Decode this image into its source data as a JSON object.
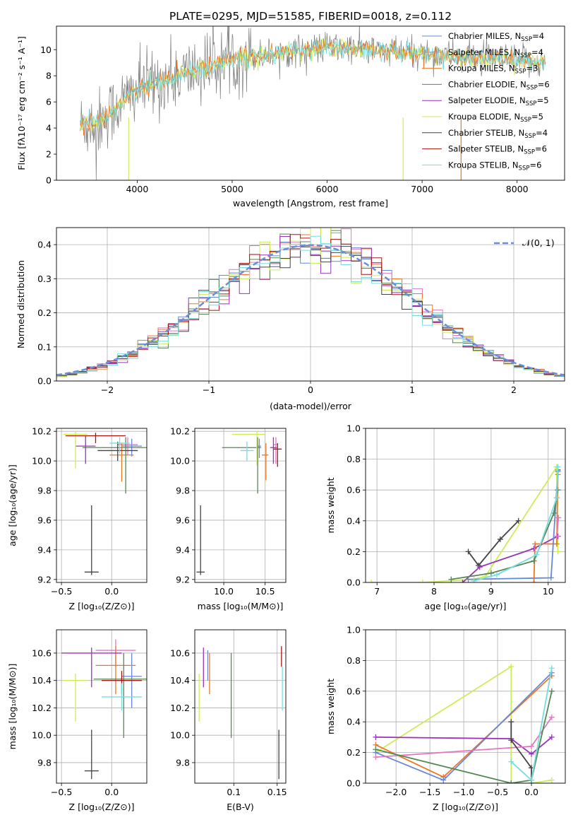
{
  "figure_title": "PLATE=0295, MJD=51585, FIBERID=0018, z=0.112",
  "colors": {
    "chabrier_miles": "#6688dd",
    "salpeter_miles": "#e377c2",
    "kroupa_miles": "#ee7722",
    "chabrier_elodie": "#558855",
    "salpeter_elodie": "#9933bb",
    "kroupa_elodie": "#ccee55",
    "chabrier_stelib": "#444444",
    "salpeter_stelib": "#aa1111",
    "kroupa_stelib": "#77dddd",
    "gaussian": "#6a8fd8"
  },
  "chart_data": [
    {
      "id": "spectrum",
      "type": "line",
      "xlabel": "wavelength [Angstrom, rest frame]",
      "ylabel": "Flux [fλ10⁻¹⁷ erg cm⁻² s⁻¹ A⁻¹]",
      "xlim": [
        3150,
        8500
      ],
      "ylim": [
        0,
        11.8
      ],
      "xticks": [
        4000,
        5000,
        6000,
        7000,
        8000
      ],
      "yticks": [
        0,
        2,
        4,
        6,
        8,
        10
      ],
      "legend_position": "top-right",
      "wave_range": [
        3400,
        8300
      ],
      "series_model": "approximate: rises from ~4.2 at 3400 to ~10.3 near 6000, noisy spikes; gray data spikes between 3500 and 5200",
      "legend": [
        {
          "name": "Chabrier MILES, N",
          "sub": "SSP",
          "suffix": "=4",
          "color": "chabrier_miles"
        },
        {
          "name": "Salpeter MILES, N",
          "sub": "SSP",
          "suffix": "=4",
          "color": "salpeter_miles"
        },
        {
          "name": "Kroupa MILES, N",
          "sub": "SSP",
          "suffix": "=3",
          "color": "kroupa_miles"
        },
        {
          "name": "Chabrier ELODIE, N",
          "sub": "SSP",
          "suffix": "=6",
          "color": "chabrier_elodie"
        },
        {
          "name": "Salpeter ELODIE, N",
          "sub": "SSP",
          "suffix": "=5",
          "color": "salpeter_elodie"
        },
        {
          "name": "Kroupa ELODIE, N",
          "sub": "SSP",
          "suffix": "=5",
          "color": "kroupa_elodie"
        },
        {
          "name": "Chabrier STELIB, N",
          "sub": "SSP",
          "suffix": "=4",
          "color": "chabrier_stelib"
        },
        {
          "name": "Salpeter STELIB, N",
          "sub": "SSP",
          "suffix": "=6",
          "color": "salpeter_stelib"
        },
        {
          "name": "Kroupa STELIB, N",
          "sub": "SSP",
          "suffix": "=6",
          "color": "kroupa_stelib"
        }
      ],
      "spike_lines": [
        {
          "x": 3910,
          "color": "kroupa_elodie"
        },
        {
          "x": 6800,
          "color": "kroupa_elodie"
        },
        {
          "x": 7410,
          "color": "kroupa_miles"
        }
      ]
    },
    {
      "id": "residuals",
      "type": "histogram",
      "xlabel": "(data-model)/error",
      "ylabel": "Normed distribution",
      "xlim": [
        -2.5,
        2.5
      ],
      "ylim": [
        0,
        0.45
      ],
      "xticks": [
        -2,
        -1,
        0,
        1,
        2
      ],
      "yticks": [
        0.0,
        0.1,
        0.2,
        0.3,
        0.4
      ],
      "grid": true,
      "legend": [
        {
          "name": "𝒩(0, 1)",
          "color": "gaussian",
          "style": "dashed"
        }
      ],
      "legend_position": "top-right",
      "bin_width": 0.1,
      "curve": "normal pdf mean 0 sigma 1"
    },
    {
      "id": "age_vs_Z",
      "type": "errorbar",
      "xlabel": "Z [log₁₀(Z/Z⊙)]",
      "ylabel": "age  [log₁₀(age/yr)]",
      "xlim": [
        -0.55,
        0.35
      ],
      "ylim": [
        9.18,
        10.22
      ],
      "xticks": [
        -0.5,
        0.0
      ],
      "yticks": [
        9.2,
        9.4,
        9.6,
        9.8,
        10.0,
        10.2
      ],
      "grid": true,
      "points": [
        {
          "color": "chabrier_stelib",
          "x": -0.2,
          "y": 9.25,
          "xerr": 0.07,
          "ylo": 9.23,
          "yhi": 9.7
        },
        {
          "color": "chabrier_miles",
          "x": 0.2,
          "y": 10.1,
          "xerr": 0.1,
          "ylo": 10.03,
          "yhi": 10.15
        },
        {
          "color": "salpeter_miles",
          "x": 0.16,
          "y": 10.11,
          "xerr": 0.1,
          "ylo": 10.04,
          "yhi": 10.16
        },
        {
          "color": "kroupa_miles",
          "x": 0.1,
          "y": 10.04,
          "xerr": 0.12,
          "ylo": 9.86,
          "yhi": 10.12
        },
        {
          "color": "chabrier_elodie",
          "x": 0.14,
          "y": 10.09,
          "xerr": 0.43,
          "ylo": 9.78,
          "yhi": 10.16
        },
        {
          "color": "salpeter_elodie",
          "x": -0.26,
          "y": 10.1,
          "xerr": 0.1,
          "ylo": 9.98,
          "yhi": 10.17
        },
        {
          "color": "kroupa_elodie",
          "x": -0.36,
          "y": 10.18,
          "xerr": 0.12,
          "ylo": 9.95,
          "yhi": 10.2
        },
        {
          "color": "chabrier_stelib",
          "x": 0.06,
          "y": 10.07,
          "xerr": 0.2,
          "ylo": 10.0,
          "yhi": 10.13
        },
        {
          "color": "salpeter_stelib",
          "x": -0.16,
          "y": 10.17,
          "xerr": 0.3,
          "ylo": 10.12,
          "yhi": 10.19
        },
        {
          "color": "kroupa_stelib",
          "x": 0.08,
          "y": 10.12,
          "xerr": 0.1,
          "ylo": 10.05,
          "yhi": 10.16
        }
      ]
    },
    {
      "id": "age_vs_mass",
      "type": "errorbar",
      "xlabel": "mass [log₁₀(M/M⊙)]",
      "ylabel": "",
      "xlim": [
        9.65,
        10.75
      ],
      "ylim": [
        9.18,
        10.22
      ],
      "xticks": [
        10.0,
        10.5
      ],
      "yticks": [
        9.2,
        9.4,
        9.6,
        9.8,
        10.0,
        10.2
      ],
      "grid": true,
      "points": [
        {
          "color": "chabrier_stelib",
          "x": 9.72,
          "y": 9.25,
          "xerr": 0.05,
          "ylo": 9.23,
          "yhi": 9.7
        },
        {
          "color": "chabrier_miles",
          "x": 10.43,
          "y": 10.1,
          "xlo": 10.41,
          "xhi": 10.45,
          "ylo": 10.02,
          "yhi": 10.15
        },
        {
          "color": "salpeter_miles",
          "x": 10.63,
          "y": 10.11,
          "xlo": 10.6,
          "xhi": 10.65,
          "ylo": 9.98,
          "yhi": 10.16
        },
        {
          "color": "kroupa_miles",
          "x": 10.51,
          "y": 10.04,
          "xlo": 10.46,
          "xhi": 10.54,
          "ylo": 9.87,
          "yhi": 10.12
        },
        {
          "color": "chabrier_elodie",
          "x": 10.41,
          "y": 10.09,
          "xlo": 9.98,
          "xhi": 10.45,
          "ylo": 9.78,
          "yhi": 10.16
        },
        {
          "color": "salpeter_elodie",
          "x": 10.6,
          "y": 10.09,
          "xlo": 10.56,
          "xhi": 10.64,
          "ylo": 9.98,
          "yhi": 10.16
        },
        {
          "color": "kroupa_elodie",
          "x": 10.4,
          "y": 10.18,
          "xlo": 10.1,
          "xhi": 10.5,
          "ylo": 9.97,
          "yhi": 10.2
        },
        {
          "color": "salpeter_stelib",
          "x": 10.65,
          "y": 10.08,
          "xlo": 10.6,
          "xhi": 10.7,
          "ylo": 9.96,
          "yhi": 10.12
        },
        {
          "color": "kroupa_stelib",
          "x": 10.28,
          "y": 10.07,
          "xlo": 10.2,
          "xhi": 10.36,
          "ylo": 10.0,
          "yhi": 10.13
        }
      ]
    },
    {
      "id": "weight_vs_age",
      "type": "line",
      "xlabel": "age  [log₁₀(age/yr)]",
      "ylabel": "mass weight",
      "xlim": [
        6.8,
        10.3
      ],
      "ylim": [
        0,
        1.0
      ],
      "xticks": [
        7,
        8,
        9,
        10
      ],
      "yticks": [
        0.0,
        0.2,
        0.4,
        0.6,
        0.8,
        1.0
      ],
      "grid": true,
      "series": [
        {
          "color": "chabrier_stelib",
          "x": [
            8.6,
            8.78,
            9.16,
            9.48
          ],
          "y": [
            0.2,
            0.11,
            0.28,
            0.4
          ]
        },
        {
          "color": "chabrier_stelib",
          "x": [
            10.15,
            10.17
          ],
          "y": [
            0.55,
            0.73
          ]
        },
        {
          "color": "kroupa_elodie",
          "x": [
            6.9,
            7.8,
            8.7,
            8.9,
            10.15,
            10.17
          ],
          "y": [
            0.0,
            0.0,
            0.02,
            0.04,
            0.75,
            0.2
          ]
        },
        {
          "color": "salpeter_elodie",
          "x": [
            8.5,
            8.8,
            9.75,
            10.17
          ],
          "y": [
            0.0,
            0.1,
            0.22,
            0.3
          ]
        },
        {
          "color": "kroupa_miles",
          "x": [
            9.75,
            9.77,
            10.15,
            10.17
          ],
          "y": [
            0.0,
            0.25,
            0.25,
            0.7
          ]
        },
        {
          "color": "chabrier_miles",
          "x": [
            8.6,
            10.05,
            10.17
          ],
          "y": [
            0.02,
            0.03,
            0.72
          ]
        },
        {
          "color": "chabrier_elodie",
          "x": [
            8.3,
            9.0,
            9.75,
            10.1,
            10.17
          ],
          "y": [
            0.02,
            0.06,
            0.14,
            0.45,
            0.6
          ]
        },
        {
          "color": "kroupa_stelib",
          "x": [
            8.7,
            9.1,
            9.8,
            10.15,
            10.17
          ],
          "y": [
            0.01,
            0.05,
            0.18,
            0.55,
            0.75
          ]
        },
        {
          "color": "salpeter_miles",
          "x": [
            10.15,
            10.18
          ],
          "y": [
            0.3,
            0.42
          ]
        }
      ]
    },
    {
      "id": "mass_vs_Z",
      "type": "errorbar",
      "xlabel": "Z [log₁₀(Z/Z⊙)]",
      "ylabel": "mass [log₁₀(M/M⊙)]",
      "xlim": [
        -0.55,
        0.35
      ],
      "ylim": [
        9.65,
        10.77
      ],
      "xticks": [
        -0.5,
        0.0
      ],
      "yticks": [
        9.8,
        10.0,
        10.2,
        10.4,
        10.6
      ],
      "grid": true,
      "points": [
        {
          "color": "chabrier_stelib",
          "x": -0.2,
          "y": 9.74,
          "xerr": 0.07,
          "ylo": 9.68,
          "yhi": 10.04
        },
        {
          "color": "chabrier_miles",
          "x": 0.2,
          "y": 10.43,
          "xerr": 0.1,
          "ylo": 10.2,
          "yhi": 10.6
        },
        {
          "color": "salpeter_miles",
          "x": 0.04,
          "y": 10.62,
          "xerr": 0.2,
          "ylo": 10.5,
          "yhi": 10.7
        },
        {
          "color": "kroupa_miles",
          "x": 0.04,
          "y": 10.51,
          "xerr": 0.2,
          "ylo": 10.3,
          "yhi": 10.65
        },
        {
          "color": "chabrier_elodie",
          "x": 0.12,
          "y": 10.41,
          "xerr": 0.3,
          "ylo": 9.98,
          "yhi": 10.6
        },
        {
          "color": "salpeter_elodie",
          "x": -0.2,
          "y": 10.6,
          "xerr": 0.3,
          "ylo": 10.35,
          "yhi": 10.64
        },
        {
          "color": "kroupa_elodie",
          "x": -0.36,
          "y": 10.4,
          "xerr": 0.12,
          "ylo": 10.1,
          "yhi": 10.45
        },
        {
          "color": "salpeter_stelib",
          "x": 0.1,
          "y": 10.4,
          "xerr": 0.2,
          "ylo": 10.3,
          "yhi": 10.47
        },
        {
          "color": "kroupa_stelib",
          "x": 0.1,
          "y": 10.28,
          "xerr": 0.2,
          "ylo": 10.18,
          "yhi": 10.38
        }
      ]
    },
    {
      "id": "mass_vs_ebv",
      "type": "errorbar",
      "xlabel": "E(B-V)",
      "ylabel": "",
      "xlim": [
        0.055,
        0.16
      ],
      "ylim": [
        9.65,
        10.77
      ],
      "xticks": [
        0.1,
        0.15
      ],
      "yticks": [
        9.8,
        10.0,
        10.2,
        10.4,
        10.6
      ],
      "grid": true,
      "points": [
        {
          "color": "chabrier_stelib",
          "x": 0.152,
          "ylo": 9.68,
          "yhi": 10.04
        },
        {
          "color": "kroupa_elodie",
          "x": 0.06,
          "ylo": 10.1,
          "yhi": 10.45
        },
        {
          "color": "salpeter_elodie",
          "x": 0.065,
          "ylo": 10.35,
          "yhi": 10.64
        },
        {
          "color": "kroupa_miles",
          "x": 0.072,
          "ylo": 10.3,
          "yhi": 10.6
        },
        {
          "color": "chabrier_miles",
          "x": 0.07,
          "ylo": 10.4,
          "yhi": 10.62
        },
        {
          "color": "chabrier_elodie",
          "x": 0.097,
          "ylo": 9.98,
          "yhi": 10.6
        },
        {
          "color": "salpeter_stelib",
          "x": 0.155,
          "ylo": 10.5,
          "yhi": 10.65
        },
        {
          "color": "kroupa_stelib",
          "x": 0.156,
          "ylo": 10.18,
          "yhi": 10.5
        }
      ]
    },
    {
      "id": "weight_vs_Z",
      "type": "line",
      "xlabel": "Z [log₁₀(Z/Z⊙)]",
      "ylabel": "mass weight",
      "xlim": [
        -2.45,
        0.5
      ],
      "ylim": [
        0,
        1.0
      ],
      "xticks": [
        -2.0,
        -1.5,
        -1.0,
        -0.5,
        0.0
      ],
      "yticks": [
        0.0,
        0.2,
        0.4,
        0.6,
        0.8,
        1.0
      ],
      "grid": true,
      "series": [
        {
          "color": "kroupa_elodie",
          "x": [
            -2.3,
            -0.3,
            -0.3,
            0.0,
            0.3
          ],
          "y": [
            0.2,
            0.76,
            0.0,
            0.0,
            0.02
          ]
        },
        {
          "color": "kroupa_miles",
          "x": [
            -2.3,
            -1.3,
            0.3
          ],
          "y": [
            0.25,
            0.04,
            0.7
          ]
        },
        {
          "color": "chabrier_miles",
          "x": [
            -2.3,
            -1.3,
            0.3
          ],
          "y": [
            0.2,
            0.02,
            0.72
          ]
        },
        {
          "color": "salpeter_elodie",
          "x": [
            -2.3,
            -0.3,
            0.0,
            0.3
          ],
          "y": [
            0.3,
            0.29,
            0.19,
            0.3
          ]
        },
        {
          "color": "salpeter_miles",
          "x": [
            -2.3,
            0.0,
            0.3
          ],
          "y": [
            0.17,
            0.24,
            0.43
          ]
        },
        {
          "color": "chabrier_stelib",
          "x": [
            -0.3,
            -0.3,
            0.0,
            0.0
          ],
          "y": [
            0.4,
            0.28,
            0.1,
            0.0
          ]
        },
        {
          "color": "chabrier_elodie",
          "x": [
            -2.3,
            -0.3,
            0.0,
            0.3
          ],
          "y": [
            0.22,
            0.0,
            0.02,
            0.6
          ]
        },
        {
          "color": "kroupa_stelib",
          "x": [
            -0.3,
            0.0,
            0.3
          ],
          "y": [
            0.14,
            0.02,
            0.75
          ]
        }
      ]
    }
  ]
}
